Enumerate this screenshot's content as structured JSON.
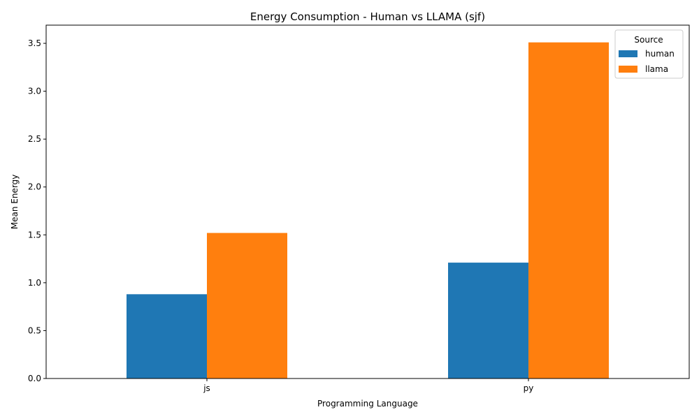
{
  "chart_data": {
    "type": "bar",
    "title": "Energy Consumption - Human vs LLAMA (sjf)",
    "xlabel": "Programming Language",
    "ylabel": "Mean Energy",
    "categories": [
      "js",
      "py"
    ],
    "series": [
      {
        "name": "human",
        "values": [
          0.88,
          1.21
        ],
        "color": "#1f77b4"
      },
      {
        "name": "llama",
        "values": [
          1.52,
          3.51
        ],
        "color": "#ff7f0e"
      }
    ],
    "ylim": [
      0,
      3.69
    ],
    "yticks": [
      "0.0",
      "0.5",
      "1.0",
      "1.5",
      "2.0",
      "2.5",
      "3.0",
      "3.5"
    ],
    "grid": false,
    "legend": {
      "title": "Source",
      "position": "top-right"
    }
  }
}
